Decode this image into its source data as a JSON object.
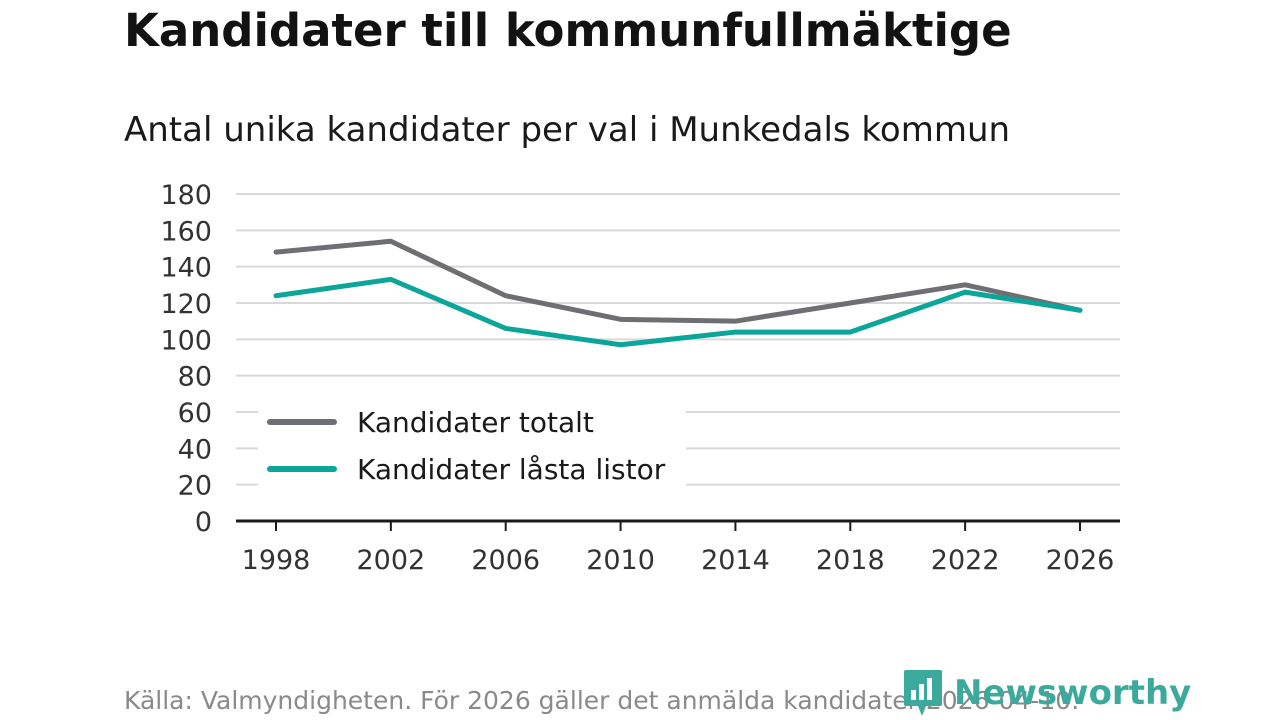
{
  "title": "Kandidater till kommunfullmäktige",
  "subtitle": "Antal unika kandidater per val i Munkedals kommun",
  "source": "Källa: Valmyndigheten. För 2026 gäller det anmälda kandidater 2026-04-10.",
  "brand": {
    "name": "Newsworthy",
    "icon": "newsworthy-logo-icon",
    "color": "#3ba99c"
  },
  "chart_data": {
    "type": "line",
    "title": "Kandidater till kommunfullmäktige",
    "subtitle": "Antal unika kandidater per val i Munkedals kommun",
    "xlabel": "",
    "ylabel": "",
    "x": [
      "1998",
      "2002",
      "2006",
      "2010",
      "2014",
      "2018",
      "2022",
      "2026"
    ],
    "ylim": [
      0,
      180
    ],
    "yticks": [
      0,
      20,
      40,
      60,
      80,
      100,
      120,
      140,
      160,
      180
    ],
    "grid": true,
    "legend": "middle-left",
    "series": [
      {
        "name": "Kandidater totalt",
        "color": "#6f6e73",
        "values": [
          148,
          154,
          124,
          111,
          110,
          120,
          130,
          116
        ]
      },
      {
        "name": "Kandidater låsta listor",
        "color": "#0ca59a",
        "values": [
          124,
          133,
          106,
          97,
          104,
          104,
          126,
          116
        ]
      }
    ]
  }
}
